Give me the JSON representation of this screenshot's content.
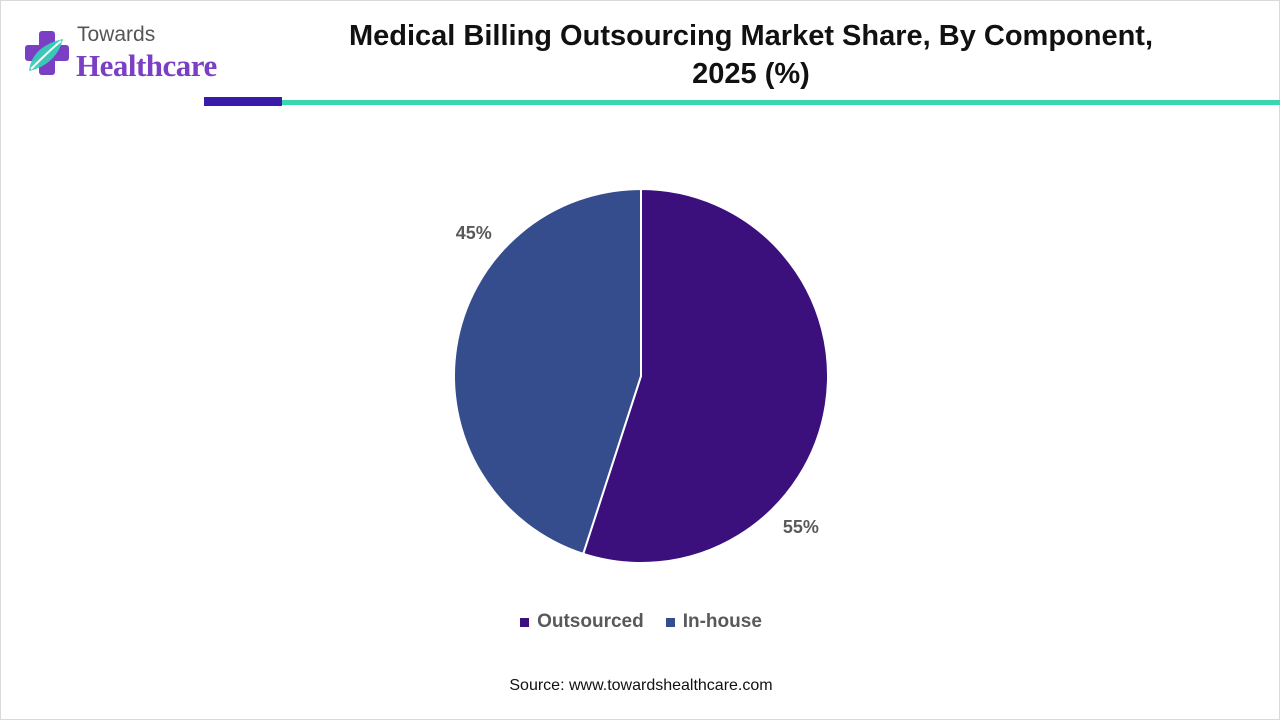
{
  "brand": {
    "top_text": "Towards",
    "bottom_text": "Healthcare",
    "icon": "medical-cross-leaf-logo"
  },
  "title": {
    "line1": "Medical Billing Outsourcing Market Share, By Component,",
    "line2": "2025 (%)"
  },
  "colors": {
    "outsourced": "#3b0f7c",
    "in_house": "#354d8d",
    "accent_dark": "#3a1aa8",
    "accent_teal": "#3ad6b0"
  },
  "chart_data": {
    "type": "pie",
    "title": "Medical Billing Outsourcing Market Share, By Component, 2025 (%)",
    "slices": [
      {
        "label": "Outsourced",
        "value": 55,
        "display": "55%",
        "color": "#3b0f7c"
      },
      {
        "label": "In-house",
        "value": 45,
        "display": "45%",
        "color": "#354d8d"
      }
    ],
    "legend_position": "bottom",
    "start": "12 o'clock, clockwise"
  },
  "legend": {
    "items": [
      {
        "label": "Outsourced",
        "color": "#3b0f7c"
      },
      {
        "label": "In-house",
        "color": "#354d8d"
      }
    ]
  },
  "source": "Source: www.towardshealthcare.com"
}
